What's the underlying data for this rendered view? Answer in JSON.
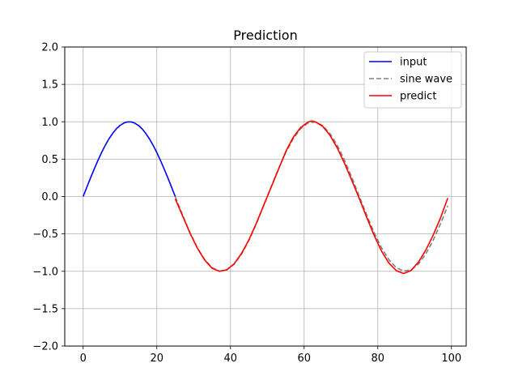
{
  "chart_data": {
    "type": "line",
    "title": "Prediction",
    "xlabel": "",
    "ylabel": "",
    "xlim": [
      -5,
      104
    ],
    "ylim": [
      -2.0,
      2.0
    ],
    "x_ticks": [
      0,
      20,
      40,
      60,
      80,
      100
    ],
    "y_ticks": [
      -2.0,
      -1.5,
      -1.0,
      -0.5,
      0.0,
      0.5,
      1.0,
      1.5,
      2.0
    ],
    "x_tick_labels": [
      "0",
      "20",
      "40",
      "60",
      "80",
      "100"
    ],
    "y_tick_labels": [
      "−2.0",
      "−1.5",
      "−1.0",
      "−0.5",
      "0.0",
      "0.5",
      "1.0",
      "1.5",
      "2.0"
    ],
    "grid": true,
    "legend_position": "top-right",
    "series": [
      {
        "name": "input",
        "color": "#0000ff",
        "style": "solid",
        "x": [
          0,
          1,
          2,
          3,
          4,
          5,
          6,
          7,
          8,
          9,
          10,
          11,
          12,
          13,
          14,
          15,
          16,
          17,
          18,
          19,
          20,
          21,
          22,
          23,
          24,
          25
        ],
        "y": [
          0.0,
          0.125,
          0.249,
          0.368,
          0.482,
          0.588,
          0.685,
          0.771,
          0.844,
          0.905,
          0.951,
          0.982,
          0.998,
          0.998,
          0.982,
          0.951,
          0.905,
          0.844,
          0.771,
          0.685,
          0.588,
          0.482,
          0.368,
          0.249,
          0.125,
          0.0
        ]
      },
      {
        "name": "sine wave",
        "color": "#808080",
        "style": "dashed",
        "x": [
          25,
          27,
          29,
          31,
          33,
          35,
          37,
          39,
          41,
          43,
          45,
          47,
          49,
          51,
          53,
          55,
          57,
          59,
          61,
          63,
          65,
          67,
          69,
          71,
          73,
          75,
          77,
          79,
          81,
          83,
          85,
          87,
          89,
          91,
          93,
          95,
          97,
          99
        ],
        "y": [
          0.0,
          -0.249,
          -0.482,
          -0.685,
          -0.844,
          -0.951,
          -0.998,
          -0.982,
          -0.905,
          -0.771,
          -0.588,
          -0.368,
          -0.125,
          0.125,
          0.368,
          0.588,
          0.771,
          0.905,
          0.982,
          0.998,
          0.951,
          0.844,
          0.685,
          0.482,
          0.249,
          0.0,
          -0.249,
          -0.482,
          -0.685,
          -0.844,
          -0.951,
          -0.998,
          -0.982,
          -0.905,
          -0.771,
          -0.588,
          -0.368,
          -0.125
        ]
      },
      {
        "name": "predict",
        "color": "#ff0000",
        "style": "solid",
        "x": [
          25,
          27,
          29,
          31,
          33,
          35,
          37,
          39,
          41,
          43,
          45,
          47,
          49,
          51,
          53,
          55,
          57,
          59,
          61,
          62,
          63,
          65,
          67,
          69,
          71,
          73,
          75,
          77,
          79,
          81,
          83,
          85,
          87,
          89,
          91,
          93,
          95,
          97,
          99
        ],
        "y": [
          -0.03,
          -0.26,
          -0.49,
          -0.69,
          -0.85,
          -0.96,
          -1.0,
          -0.98,
          -0.9,
          -0.76,
          -0.58,
          -0.36,
          -0.12,
          0.12,
          0.36,
          0.6,
          0.79,
          0.92,
          0.995,
          1.01,
          1.0,
          0.94,
          0.82,
          0.65,
          0.44,
          0.21,
          -0.03,
          -0.28,
          -0.52,
          -0.73,
          -0.89,
          -0.99,
          -1.03,
          -0.99,
          -0.88,
          -0.72,
          -0.52,
          -0.29,
          -0.02
        ]
      }
    ]
  }
}
